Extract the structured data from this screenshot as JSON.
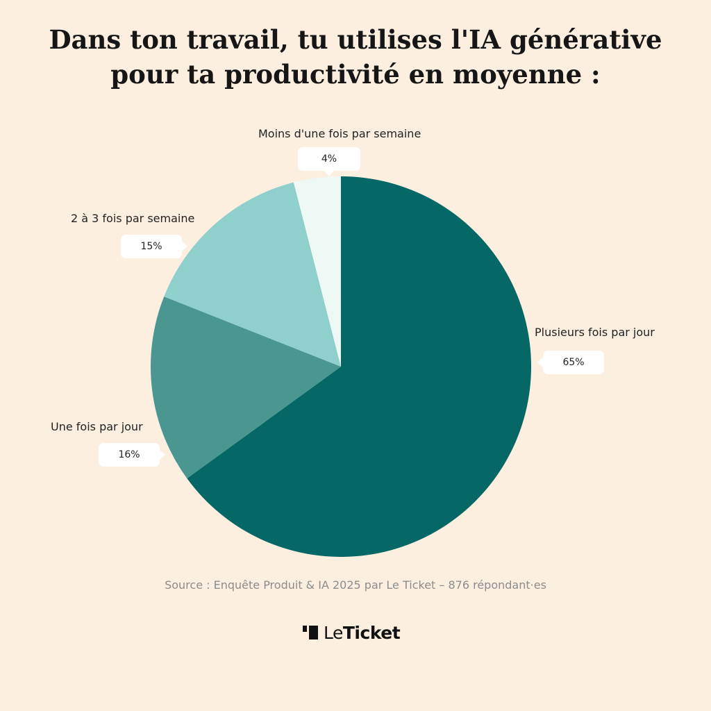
{
  "title_lines": [
    "Dans ton travail, tu utilises l'IA générative",
    "pour ta productivité en moyenne :"
  ],
  "chart_data": {
    "type": "pie",
    "title": "Dans ton travail, tu utilises l'IA générative pour ta productivité en moyenne :",
    "start_angle": "12 o'clock",
    "direction": "clockwise",
    "slices": [
      {
        "label": "Plusieurs fois par jour",
        "value": 65,
        "display": "65%",
        "color": "#066866"
      },
      {
        "label": "Une fois par jour",
        "value": 16,
        "display": "16%",
        "color": "#4a9690"
      },
      {
        "label": "2 à 3 fois par semaine",
        "value": 15,
        "display": "15%",
        "color": "#8fcfcc"
      },
      {
        "label": "Moins d'une fois par semaine",
        "value": 4,
        "display": "4%",
        "color": "#eef9f6"
      }
    ]
  },
  "source": "Source : Enquête Produit & IA 2025 par Le Ticket – 876 répondant·es",
  "brand": {
    "part1": "Le",
    "part2": "Ticket",
    "icon": "leticket-logo-icon"
  },
  "colors": {
    "background": "#fcefdf",
    "callout_background": "#ffffff"
  }
}
